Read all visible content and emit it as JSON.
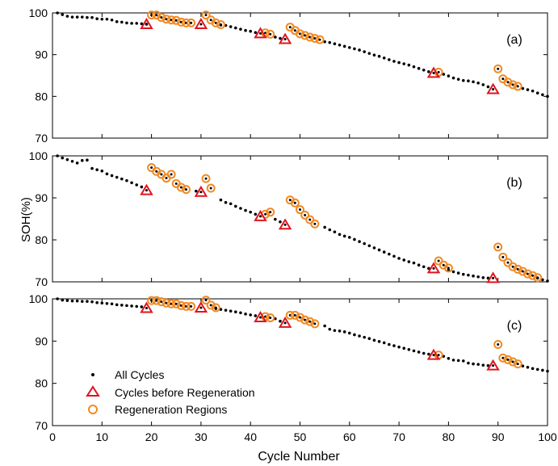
{
  "figure": {
    "xlabel": "Cycle Number",
    "ylabel": "SOH(%)",
    "xticks": [
      "0",
      "10",
      "20",
      "30",
      "40",
      "50",
      "60",
      "70",
      "80",
      "90",
      "100"
    ]
  },
  "legend": {
    "items": [
      {
        "label": "All Cycles",
        "marker": "dot"
      },
      {
        "label": "Cycles before Regeneration",
        "marker": "triangle"
      },
      {
        "label": "Regeneration Regions",
        "marker": "circle"
      }
    ],
    "placement": "bottom-left of panel (c)"
  },
  "colors": {
    "dots": "#000000",
    "triangle": "#e0141e",
    "circle": "#f08a24",
    "axis": "#000000"
  },
  "chart_data": [
    {
      "type": "scatter",
      "panel_label": "(a)",
      "xlim": [
        0,
        100
      ],
      "ylim": [
        70,
        100
      ],
      "yticks": [
        "70",
        "80",
        "90",
        "100"
      ],
      "all_cycles": [
        [
          1,
          100
        ],
        [
          2,
          99.6
        ],
        [
          3,
          99.2
        ],
        [
          4,
          99
        ],
        [
          5,
          99
        ],
        [
          6,
          99
        ],
        [
          7,
          98.9
        ],
        [
          8,
          98.9
        ],
        [
          9,
          98.6
        ],
        [
          10,
          98.5
        ],
        [
          11,
          98.5
        ],
        [
          12,
          98.3
        ],
        [
          13,
          97.9
        ],
        [
          14,
          97.8
        ],
        [
          15,
          97.6
        ],
        [
          16,
          97.5
        ],
        [
          17,
          97.5
        ],
        [
          18,
          97.4
        ],
        [
          19,
          97.3
        ],
        [
          34,
          97.1
        ],
        [
          35,
          97
        ],
        [
          36,
          96.7
        ],
        [
          37,
          96.4
        ],
        [
          38,
          96.1
        ],
        [
          39,
          95.8
        ],
        [
          40,
          95.6
        ],
        [
          41,
          95.3
        ],
        [
          45,
          94.2
        ],
        [
          46,
          93.9
        ],
        [
          55,
          93.1
        ],
        [
          56,
          92.9
        ],
        [
          57,
          92.6
        ],
        [
          58,
          92.3
        ],
        [
          59,
          92
        ],
        [
          60,
          91.7
        ],
        [
          61,
          91.4
        ],
        [
          62,
          91.1
        ],
        [
          63,
          90.7
        ],
        [
          64,
          90.3
        ],
        [
          65,
          89.9
        ],
        [
          66,
          89.6
        ],
        [
          67,
          89.2
        ],
        [
          68,
          88.8
        ],
        [
          69,
          88.4
        ],
        [
          70,
          88.1
        ],
        [
          71,
          87.8
        ],
        [
          72,
          87.5
        ],
        [
          73,
          87.1
        ],
        [
          74,
          86.7
        ],
        [
          75,
          86.3
        ],
        [
          76,
          85.9
        ],
        [
          79,
          85.3
        ],
        [
          80,
          84.9
        ],
        [
          81,
          84.4
        ],
        [
          82,
          84.1
        ],
        [
          83,
          83.8
        ],
        [
          84,
          83.7
        ],
        [
          85,
          83.5
        ],
        [
          86,
          83.2
        ],
        [
          87,
          82.8
        ],
        [
          88,
          82.3
        ],
        [
          95,
          81.9
        ],
        [
          96,
          81.6
        ],
        [
          97,
          81.3
        ],
        [
          98,
          80.8
        ],
        [
          99,
          80.4
        ],
        [
          100,
          80
        ]
      ],
      "before_regeneration": [
        [
          19,
          97.3
        ],
        [
          30,
          97.3
        ],
        [
          42,
          95.1
        ],
        [
          47,
          93.7
        ],
        [
          77,
          85.6
        ],
        [
          89,
          81.7
        ]
      ],
      "regeneration": [
        [
          20,
          99.5
        ],
        [
          21,
          99.5
        ],
        [
          22,
          98.9
        ],
        [
          23,
          98.5
        ],
        [
          24,
          98.3
        ],
        [
          25,
          98.2
        ],
        [
          26,
          97.8
        ],
        [
          27,
          97.6
        ],
        [
          28,
          97.6
        ],
        [
          31,
          99.5
        ],
        [
          32,
          98.3
        ],
        [
          33,
          97.6
        ],
        [
          34,
          97.2
        ],
        [
          43,
          95.2
        ],
        [
          44,
          94.9
        ],
        [
          48,
          96.6
        ],
        [
          49,
          95.8
        ],
        [
          50,
          95
        ],
        [
          51,
          94.6
        ],
        [
          52,
          94.2
        ],
        [
          53,
          93.9
        ],
        [
          54,
          93.6
        ],
        [
          78,
          85.8
        ],
        [
          90,
          86.6
        ],
        [
          91,
          84.2
        ],
        [
          92,
          83.4
        ],
        [
          93,
          82.8
        ],
        [
          94,
          82.4
        ]
      ]
    },
    {
      "type": "scatter",
      "panel_label": "(b)",
      "xlim": [
        0,
        100
      ],
      "ylim": [
        70,
        100
      ],
      "yticks": [
        "70",
        "80",
        "90",
        "100"
      ],
      "all_cycles": [
        [
          1,
          100
        ],
        [
          2,
          99.5
        ],
        [
          3,
          99.1
        ],
        [
          4,
          98.7
        ],
        [
          5,
          98.3
        ],
        [
          6,
          98.9
        ],
        [
          7,
          99
        ],
        [
          8,
          97
        ],
        [
          9,
          96.7
        ],
        [
          10,
          96.4
        ],
        [
          11,
          95.7
        ],
        [
          12,
          95.3
        ],
        [
          13,
          94.9
        ],
        [
          14,
          94.5
        ],
        [
          15,
          94.1
        ],
        [
          16,
          93.6
        ],
        [
          17,
          93.1
        ],
        [
          18,
          92.6
        ],
        [
          29,
          91.6
        ],
        [
          34,
          89.5
        ],
        [
          35,
          88.9
        ],
        [
          36,
          88.6
        ],
        [
          37,
          88
        ],
        [
          38,
          87.5
        ],
        [
          39,
          87
        ],
        [
          40,
          86.6
        ],
        [
          41,
          86.1
        ],
        [
          45,
          84.9
        ],
        [
          46,
          84.3
        ],
        [
          55,
          83
        ],
        [
          56,
          82.4
        ],
        [
          57,
          81.9
        ],
        [
          58,
          81.3
        ],
        [
          59,
          80.9
        ],
        [
          60,
          80.6
        ],
        [
          61,
          80.1
        ],
        [
          62,
          79.6
        ],
        [
          63,
          79.1
        ],
        [
          64,
          78.6
        ],
        [
          65,
          78.1
        ],
        [
          66,
          77.6
        ],
        [
          67,
          77.1
        ],
        [
          68,
          76.6
        ],
        [
          69,
          76.1
        ],
        [
          70,
          75.6
        ],
        [
          71,
          75.2
        ],
        [
          72,
          74.8
        ],
        [
          73,
          74.5
        ],
        [
          74,
          74
        ],
        [
          75,
          73.6
        ],
        [
          76,
          73.2
        ],
        [
          80,
          72.8
        ],
        [
          81,
          72.4
        ],
        [
          82,
          72.1
        ],
        [
          83,
          71.8
        ],
        [
          84,
          71.6
        ],
        [
          85,
          71.4
        ],
        [
          86,
          71.2
        ],
        [
          87,
          71
        ],
        [
          88,
          70.9
        ],
        [
          98,
          70.9
        ],
        [
          99,
          70.5
        ],
        [
          100,
          70.2
        ]
      ],
      "before_regeneration": [
        [
          19,
          91.8
        ],
        [
          30,
          91.4
        ],
        [
          42,
          85.6
        ],
        [
          47,
          83.6
        ],
        [
          77,
          73.2
        ],
        [
          89,
          70.9
        ]
      ],
      "regeneration": [
        [
          20,
          97.2
        ],
        [
          21,
          96.3
        ],
        [
          22,
          95.6
        ],
        [
          23,
          94.7
        ],
        [
          24,
          95.6
        ],
        [
          25,
          93.4
        ],
        [
          26,
          92.5
        ],
        [
          27,
          92
        ],
        [
          31,
          94.6
        ],
        [
          32,
          92.3
        ],
        [
          43,
          86.1
        ],
        [
          44,
          86.6
        ],
        [
          48,
          89.5
        ],
        [
          49,
          88.8
        ],
        [
          50,
          87.2
        ],
        [
          51,
          85.9
        ],
        [
          52,
          84.8
        ],
        [
          53,
          83.8
        ],
        [
          78,
          75
        ],
        [
          79,
          74
        ],
        [
          80,
          73.3
        ],
        [
          90,
          78.3
        ],
        [
          91,
          75.9
        ],
        [
          92,
          74.6
        ],
        [
          93,
          73.6
        ],
        [
          94,
          73
        ],
        [
          95,
          72.5
        ],
        [
          96,
          71.9
        ],
        [
          97,
          71.5
        ],
        [
          98,
          71
        ]
      ]
    },
    {
      "type": "scatter",
      "panel_label": "(c)",
      "xlim": [
        0,
        100
      ],
      "ylim": [
        70,
        100
      ],
      "yticks": [
        "70",
        "80",
        "90",
        "100"
      ],
      "all_cycles": [
        [
          1,
          100
        ],
        [
          2,
          99.7
        ],
        [
          3,
          99.6
        ],
        [
          4,
          99.5
        ],
        [
          5,
          99.5
        ],
        [
          6,
          99.4
        ],
        [
          7,
          99.4
        ],
        [
          8,
          99.3
        ],
        [
          9,
          99.1
        ],
        [
          10,
          99
        ],
        [
          11,
          98.9
        ],
        [
          12,
          98.8
        ],
        [
          13,
          98.6
        ],
        [
          14,
          98.5
        ],
        [
          15,
          98.4
        ],
        [
          16,
          98.3
        ],
        [
          17,
          98.2
        ],
        [
          18,
          98.1
        ],
        [
          33,
          97.7
        ],
        [
          34,
          97.5
        ],
        [
          35,
          97.3
        ],
        [
          36,
          97.1
        ],
        [
          37,
          96.9
        ],
        [
          38,
          96.7
        ],
        [
          39,
          96.4
        ],
        [
          40,
          96.2
        ],
        [
          41,
          96
        ],
        [
          45,
          95.3
        ],
        [
          46,
          94.7
        ],
        [
          55,
          93.6
        ],
        [
          56,
          92.8
        ],
        [
          57,
          92.5
        ],
        [
          58,
          92.4
        ],
        [
          59,
          92.2
        ],
        [
          60,
          91.9
        ],
        [
          61,
          91.5
        ],
        [
          62,
          91.2
        ],
        [
          63,
          90.9
        ],
        [
          64,
          90.6
        ],
        [
          65,
          90.2
        ],
        [
          66,
          89.9
        ],
        [
          67,
          89.6
        ],
        [
          68,
          89.2
        ],
        [
          69,
          88.9
        ],
        [
          70,
          88.6
        ],
        [
          71,
          88.3
        ],
        [
          72,
          88
        ],
        [
          73,
          87.7
        ],
        [
          74,
          87.4
        ],
        [
          75,
          87.1
        ],
        [
          76,
          86.9
        ],
        [
          79,
          86.4
        ],
        [
          80,
          85.9
        ],
        [
          81,
          85.5
        ],
        [
          82,
          85.4
        ],
        [
          83,
          85.3
        ],
        [
          84,
          84.8
        ],
        [
          85,
          84.6
        ],
        [
          86,
          84.5
        ],
        [
          87,
          84.3
        ],
        [
          88,
          84.2
        ],
        [
          95,
          84.1
        ],
        [
          96,
          83.8
        ],
        [
          97,
          83.5
        ],
        [
          98,
          83.3
        ],
        [
          99,
          83.1
        ],
        [
          100,
          82.9
        ]
      ],
      "before_regeneration": [
        [
          19,
          97.8
        ],
        [
          30,
          97.9
        ],
        [
          42,
          95.6
        ],
        [
          47,
          94.3
        ],
        [
          77,
          86.7
        ],
        [
          89,
          84.2
        ]
      ],
      "regeneration": [
        [
          20,
          99.6
        ],
        [
          21,
          99.6
        ],
        [
          22,
          99.3
        ],
        [
          23,
          99
        ],
        [
          24,
          98.8
        ],
        [
          25,
          98.8
        ],
        [
          26,
          98.4
        ],
        [
          27,
          98.2
        ],
        [
          28,
          98.2
        ],
        [
          31,
          99.7
        ],
        [
          32,
          98.5
        ],
        [
          33,
          97.9
        ],
        [
          43,
          95.8
        ],
        [
          44,
          95.5
        ],
        [
          48,
          96.1
        ],
        [
          49,
          96.1
        ],
        [
          50,
          95.6
        ],
        [
          51,
          95
        ],
        [
          52,
          94.6
        ],
        [
          53,
          94.1
        ],
        [
          78,
          86.7
        ],
        [
          90,
          89.2
        ],
        [
          91,
          86
        ],
        [
          92,
          85.6
        ],
        [
          93,
          85.1
        ],
        [
          94,
          84.6
        ]
      ]
    }
  ]
}
